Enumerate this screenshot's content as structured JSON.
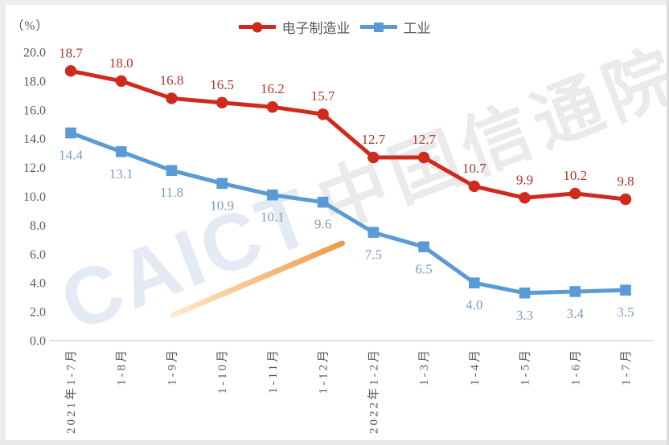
{
  "unit_label": "（%）",
  "watermark": {
    "latin": "CAICT",
    "cjk": "中国信通院"
  },
  "chart_data": {
    "type": "line",
    "categories": [
      "2021年1-7月",
      "1-8月",
      "1-9月",
      "1-10月",
      "1-11月",
      "1-12月",
      "2022年1-2月",
      "1-3月",
      "1-4月",
      "1-5月",
      "1-6月",
      "1-7月"
    ],
    "series": [
      {
        "name": "电子制造业",
        "marker": "circle",
        "color": "#d02a1e",
        "label_color": "#a93730",
        "label_position": "above",
        "values": [
          18.7,
          18.0,
          16.8,
          16.5,
          16.2,
          15.7,
          12.7,
          12.7,
          10.7,
          9.9,
          10.2,
          9.8
        ]
      },
      {
        "name": "工业",
        "marker": "square",
        "color": "#5b9bd5",
        "label_color": "#7b9cc0",
        "label_position": "below",
        "values": [
          14.4,
          13.1,
          11.8,
          10.9,
          10.1,
          9.6,
          7.5,
          6.5,
          4.0,
          3.3,
          3.4,
          3.5
        ]
      }
    ],
    "title": "",
    "xlabel": "",
    "ylabel": "（%）",
    "ylim": [
      0,
      20
    ],
    "ytick_step": 2,
    "ytick_labels": [
      "0.0",
      "2.0",
      "4.0",
      "6.0",
      "8.0",
      "10.0",
      "12.0",
      "14.0",
      "16.0",
      "18.0",
      "20.0"
    ],
    "grid": false,
    "legend_position": "top-center",
    "axis_color": "#d8d8d8"
  }
}
